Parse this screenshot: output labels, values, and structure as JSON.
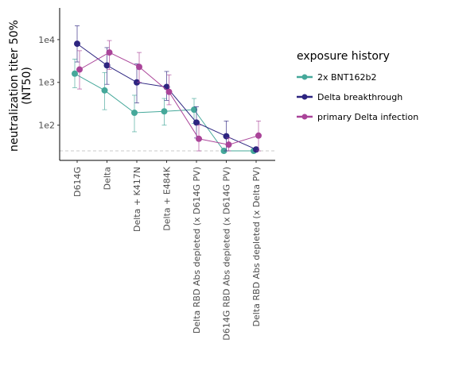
{
  "chart_data": {
    "type": "line",
    "ylabel_lines": [
      "neutralization titer 50%",
      "(NT50)"
    ],
    "xlabel": "",
    "y_scale": "log10",
    "ylim": [
      15,
      55000
    ],
    "y_ticks": [
      100,
      1000,
      10000
    ],
    "y_tick_labels": [
      "1e2",
      "1e3",
      "1e4"
    ],
    "detection_limit": 25,
    "categories": [
      "D614G",
      "Delta",
      "Delta + K417N",
      "Delta + E484K",
      "Delta RBD Abs depleted (x D614G PV)",
      "D614G RBD Abs depleted (x D614G PV)",
      "Delta RBD Abs depleted (x Delta PV)"
    ],
    "legend": {
      "title": "exposure history",
      "position": "right"
    },
    "series": [
      {
        "name": "2x BNT162b2",
        "color": "#45A89A",
        "values": [
          1600,
          650,
          195,
          210,
          230,
          25,
          25
        ],
        "error_low": [
          750,
          230,
          70,
          100,
          110,
          25,
          25
        ],
        "error_high": [
          3500,
          1700,
          500,
          420,
          420,
          25,
          25
        ]
      },
      {
        "name": "Delta breakthrough",
        "color": "#2D2580",
        "values": [
          8000,
          2500,
          1000,
          780,
          115,
          55,
          27
        ],
        "error_low": [
          3000,
          900,
          330,
          380,
          50,
          25,
          25
        ],
        "error_high": [
          21000,
          6500,
          2700,
          1800,
          270,
          125,
          30
        ]
      },
      {
        "name": "primary Delta infection",
        "color": "#AA4499",
        "values": [
          2000,
          5000,
          2300,
          600,
          48,
          35,
          57
        ],
        "error_low": [
          700,
          2000,
          1000,
          300,
          25,
          25,
          25
        ],
        "error_high": [
          5500,
          9500,
          5000,
          1500,
          100,
          50,
          125
        ]
      }
    ]
  }
}
